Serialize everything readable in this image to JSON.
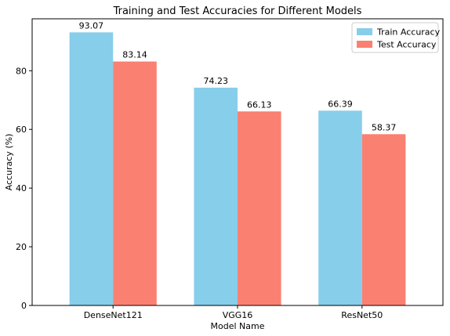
{
  "chart_data": {
    "type": "bar",
    "title": "Training and Test Accuracies for Different Models",
    "xlabel": "Model Name",
    "ylabel": "Accuracy (%)",
    "categories": [
      "DenseNet121",
      "VGG16",
      "ResNet50"
    ],
    "series": [
      {
        "name": "Train Accuracy",
        "color": "#87ceeb",
        "values": [
          93.07,
          74.23,
          66.39
        ],
        "labels": [
          "93.07",
          "74.23",
          "66.39"
        ]
      },
      {
        "name": "Test Accuracy",
        "color": "#fa8072",
        "values": [
          83.14,
          66.13,
          58.37
        ],
        "labels": [
          "83.14",
          "66.13",
          "58.37"
        ]
      }
    ],
    "ylim": [
      0,
      97.7
    ],
    "yticks": [
      0,
      20,
      40,
      60,
      80
    ],
    "grid": false,
    "legend_position": "top-right"
  }
}
